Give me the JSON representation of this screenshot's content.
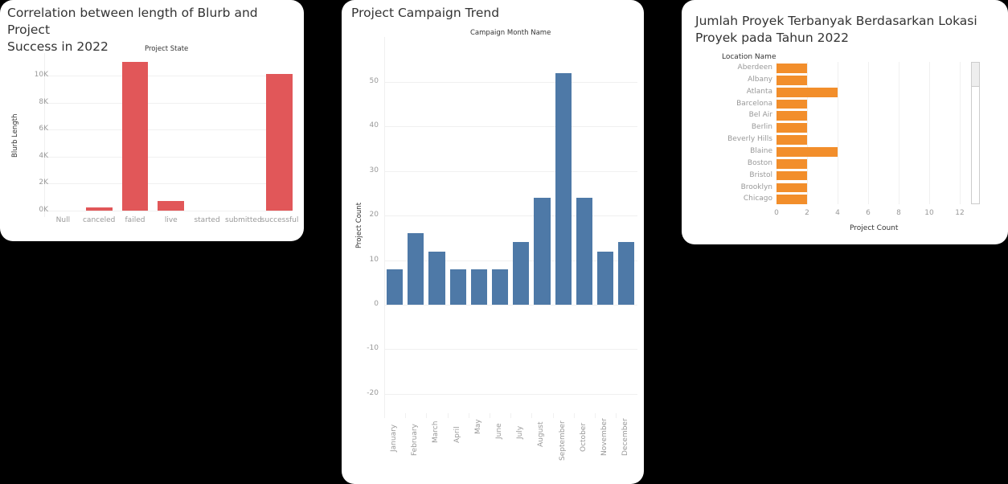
{
  "cards": {
    "blurb": {
      "title_line1": "Correlation between length of Blurb and Project",
      "title_line2": "Success in 2022"
    },
    "campaign": {
      "title": "Project Campaign Trend"
    },
    "location": {
      "title_line1": "Jumlah Proyek Terbanyak Berdasarkan Lokasi",
      "title_line2": "Proyek pada Tahun 2022"
    }
  },
  "colors": {
    "blurb_bar": "#E15759",
    "campaign_bar": "#4E79A7",
    "location_bar": "#F28E2B"
  },
  "chart_data": [
    {
      "type": "bar",
      "title": "Correlation between length of Blurb and Project Success in 2022",
      "xlabel": "Project State",
      "ylabel": "Blurb Length",
      "categories": [
        "Null",
        "canceled",
        "failed",
        "live",
        "started",
        "submitted",
        "successful"
      ],
      "values": [
        0,
        250,
        11000,
        700,
        0,
        0,
        10100
      ],
      "yticks": [
        "0K",
        "2K",
        "4K",
        "6K",
        "8K",
        "10K"
      ],
      "ylim": [
        0,
        11500
      ],
      "grid": true,
      "xlabel_position": "top"
    },
    {
      "type": "bar",
      "title": "Project Campaign Trend",
      "xlabel": "Campaign Month Name",
      "ylabel": "Project Count",
      "categories": [
        "January",
        "February",
        "March",
        "April",
        "May",
        "June",
        "July",
        "August",
        "September",
        "October",
        "November",
        "December"
      ],
      "values": [
        8,
        16,
        12,
        8,
        8,
        8,
        14,
        24,
        52,
        24,
        12,
        14
      ],
      "yticks": [
        "-20",
        "-10",
        "0",
        "10",
        "20",
        "30",
        "40",
        "50"
      ],
      "ylim": [
        -25,
        55
      ],
      "grid": true,
      "xlabel_position": "top"
    },
    {
      "type": "bar",
      "orientation": "horizontal",
      "title": "Jumlah Proyek Terbanyak Berdasarkan Lokasi Proyek pada Tahun 2022",
      "xlabel": "Project Count",
      "ylabel": "Location Name",
      "categories": [
        "Aberdeen",
        "Albany",
        "Atlanta",
        "Barcelona",
        "Bel Air",
        "Berlin",
        "Beverly Hills",
        "Blaine",
        "Boston",
        "Bristol",
        "Brooklyn",
        "Chicago"
      ],
      "values": [
        2,
        2,
        4,
        2,
        2,
        2,
        2,
        4,
        2,
        2,
        2,
        2
      ],
      "xticks": [
        "0",
        "2",
        "4",
        "6",
        "8",
        "10",
        "12"
      ],
      "xlim": [
        0,
        13
      ],
      "grid": true,
      "scrollbar": true
    }
  ]
}
